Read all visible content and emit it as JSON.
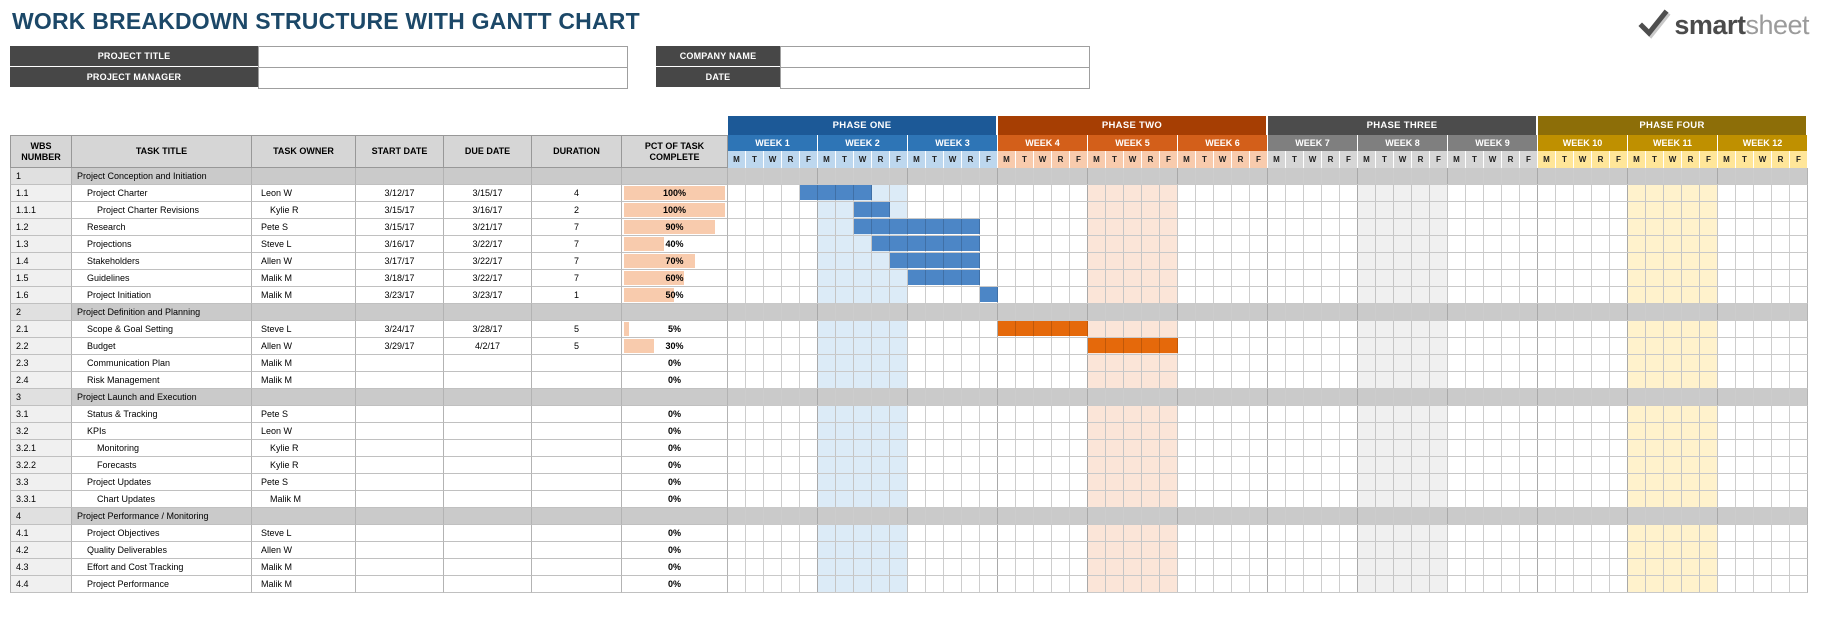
{
  "title": "WORK BREAKDOWN STRUCTURE WITH GANTT CHART",
  "logo": {
    "smart": "smart",
    "sheet": "sheet"
  },
  "form": {
    "left": [
      {
        "label": "PROJECT TITLE",
        "value": ""
      },
      {
        "label": "PROJECT MANAGER",
        "value": ""
      }
    ],
    "right": [
      {
        "label": "COMPANY NAME",
        "value": ""
      },
      {
        "label": "DATE",
        "value": ""
      }
    ]
  },
  "table": {
    "columns": [
      "WBS NUMBER",
      "TASK TITLE",
      "TASK OWNER",
      "START DATE",
      "DUE DATE",
      "DURATION",
      "PCT OF TASK COMPLETE"
    ],
    "rows": [
      {
        "wbs": "1",
        "title": "Project Conception and Initiation",
        "owner": "",
        "start": "",
        "due": "",
        "duration": "",
        "pct": "",
        "type": "section",
        "level": 0
      },
      {
        "wbs": "1.1",
        "title": "Project Charter",
        "owner": "Leon W",
        "start": "3/12/17",
        "due": "3/15/17",
        "duration": "4",
        "pct": "100%",
        "type": "task",
        "level": 1,
        "bar": {
          "from": 5,
          "to": 8,
          "color": "blue"
        }
      },
      {
        "wbs": "1.1.1",
        "title": "Project Charter Revisions",
        "owner": "Kylie R",
        "start": "3/15/17",
        "due": "3/16/17",
        "duration": "2",
        "pct": "100%",
        "type": "task",
        "level": 2,
        "bar": {
          "from": 8,
          "to": 9,
          "color": "blue"
        }
      },
      {
        "wbs": "1.2",
        "title": "Research",
        "owner": "Pete S",
        "start": "3/15/17",
        "due": "3/21/17",
        "duration": "7",
        "pct": "90%",
        "type": "task",
        "level": 1,
        "bar": {
          "from": 8,
          "to": 14,
          "color": "blue"
        }
      },
      {
        "wbs": "1.3",
        "title": "Projections",
        "owner": "Steve L",
        "start": "3/16/17",
        "due": "3/22/17",
        "duration": "7",
        "pct": "40%",
        "type": "task",
        "level": 1,
        "bar": {
          "from": 9,
          "to": 14,
          "color": "blue"
        }
      },
      {
        "wbs": "1.4",
        "title": "Stakeholders",
        "owner": "Allen W",
        "start": "3/17/17",
        "due": "3/22/17",
        "duration": "7",
        "pct": "70%",
        "type": "task",
        "level": 1,
        "bar": {
          "from": 10,
          "to": 14,
          "color": "blue"
        }
      },
      {
        "wbs": "1.5",
        "title": "Guidelines",
        "owner": "Malik M",
        "start": "3/18/17",
        "due": "3/22/17",
        "duration": "7",
        "pct": "60%",
        "type": "task",
        "level": 1,
        "bar": {
          "from": 11,
          "to": 14,
          "color": "blue"
        }
      },
      {
        "wbs": "1.6",
        "title": "Project Initiation",
        "owner": "Malik M",
        "start": "3/23/17",
        "due": "3/23/17",
        "duration": "1",
        "pct": "50%",
        "type": "task",
        "level": 1,
        "bar": {
          "from": 15,
          "to": 15,
          "color": "blue"
        }
      },
      {
        "wbs": "2",
        "title": "Project Definition and Planning",
        "owner": "",
        "start": "",
        "due": "",
        "duration": "",
        "pct": "",
        "type": "section",
        "level": 0
      },
      {
        "wbs": "2.1",
        "title": "Scope & Goal Setting",
        "owner": "Steve L",
        "start": "3/24/17",
        "due": "3/28/17",
        "duration": "5",
        "pct": "5%",
        "type": "task",
        "level": 1,
        "bar": {
          "from": 16,
          "to": 20,
          "color": "orange"
        }
      },
      {
        "wbs": "2.2",
        "title": "Budget",
        "owner": "Allen W",
        "start": "3/29/17",
        "due": "4/2/17",
        "duration": "5",
        "pct": "30%",
        "type": "task",
        "level": 1,
        "bar": {
          "from": 21,
          "to": 25,
          "color": "orange"
        }
      },
      {
        "wbs": "2.3",
        "title": "Communication Plan",
        "owner": "Malik M",
        "start": "",
        "due": "",
        "duration": "",
        "pct": "0%",
        "type": "task",
        "level": 1
      },
      {
        "wbs": "2.4",
        "title": "Risk Management",
        "owner": "Malik M",
        "start": "",
        "due": "",
        "duration": "",
        "pct": "0%",
        "type": "task",
        "level": 1
      },
      {
        "wbs": "3",
        "title": "Project Launch and Execution",
        "owner": "",
        "start": "",
        "due": "",
        "duration": "",
        "pct": "",
        "type": "section",
        "level": 0
      },
      {
        "wbs": "3.1",
        "title": "Status & Tracking",
        "owner": "Pete S",
        "start": "",
        "due": "",
        "duration": "",
        "pct": "0%",
        "type": "task",
        "level": 1
      },
      {
        "wbs": "3.2",
        "title": "KPIs",
        "owner": "Leon W",
        "start": "",
        "due": "",
        "duration": "",
        "pct": "0%",
        "type": "task",
        "level": 1
      },
      {
        "wbs": "3.2.1",
        "title": "Monitoring",
        "owner": "Kylie R",
        "start": "",
        "due": "",
        "duration": "",
        "pct": "0%",
        "type": "task",
        "level": 2
      },
      {
        "wbs": "3.2.2",
        "title": "Forecasts",
        "owner": "Kylie R",
        "start": "",
        "due": "",
        "duration": "",
        "pct": "0%",
        "type": "task",
        "level": 2
      },
      {
        "wbs": "3.3",
        "title": "Project Updates",
        "owner": "Pete S",
        "start": "",
        "due": "",
        "duration": "",
        "pct": "0%",
        "type": "task",
        "level": 1
      },
      {
        "wbs": "3.3.1",
        "title": "Chart Updates",
        "owner": "Malik M",
        "start": "",
        "due": "",
        "duration": "",
        "pct": "0%",
        "type": "task",
        "level": 2
      },
      {
        "wbs": "4",
        "title": "Project Performance / Monitoring",
        "owner": "",
        "start": "",
        "due": "",
        "duration": "",
        "pct": "",
        "type": "section",
        "level": 0
      },
      {
        "wbs": "4.1",
        "title": "Project Objectives",
        "owner": "Steve L",
        "start": "",
        "due": "",
        "duration": "",
        "pct": "0%",
        "type": "task",
        "level": 1
      },
      {
        "wbs": "4.2",
        "title": "Quality Deliverables",
        "owner": "Allen W",
        "start": "",
        "due": "",
        "duration": "",
        "pct": "0%",
        "type": "task",
        "level": 1
      },
      {
        "wbs": "4.3",
        "title": "Effort and Cost Tracking",
        "owner": "Malik M",
        "start": "",
        "due": "",
        "duration": "",
        "pct": "0%",
        "type": "task",
        "level": 1
      },
      {
        "wbs": "4.4",
        "title": "Project Performance",
        "owner": "Malik M",
        "start": "",
        "due": "",
        "duration": "",
        "pct": "0%",
        "type": "task",
        "level": 1
      }
    ]
  },
  "gantt": {
    "day_letters": [
      "M",
      "T",
      "W",
      "R",
      "F"
    ],
    "phases": [
      {
        "name": "PHASE ONE",
        "weeks": [
          "WEEK 1",
          "WEEK 2",
          "WEEK 3"
        ],
        "header_color": "#1c5997",
        "week_color": "#2e75b6",
        "day_color": "#bdd7ee",
        "band_color": "#dcebf7"
      },
      {
        "name": "PHASE TWO",
        "weeks": [
          "WEEK 4",
          "WEEK 5",
          "WEEK 6"
        ],
        "header_color": "#a63e03",
        "week_color": "#d35f1a",
        "day_color": "#f8cbad",
        "band_color": "#fbe5d8"
      },
      {
        "name": "PHASE THREE",
        "weeks": [
          "WEEK 7",
          "WEEK 8",
          "WEEK 9"
        ],
        "header_color": "#4c4c4c",
        "week_color": "#7f7f7f",
        "day_color": "#d6d6d6",
        "band_color": "#f0f0f0"
      },
      {
        "name": "PHASE FOUR",
        "weeks": [
          "WEEK 10",
          "WEEK 11",
          "WEEK 12"
        ],
        "header_color": "#8d6e08",
        "week_color": "#bf9000",
        "day_color": "#ffe699",
        "band_color": "#fff2cc"
      }
    ],
    "highlight_weeks": [
      2,
      5,
      8,
      11
    ],
    "bar_colors": {
      "blue": "#4c86c6",
      "orange": "#e5690b"
    },
    "pct_fill_color": "#f8cbad"
  }
}
